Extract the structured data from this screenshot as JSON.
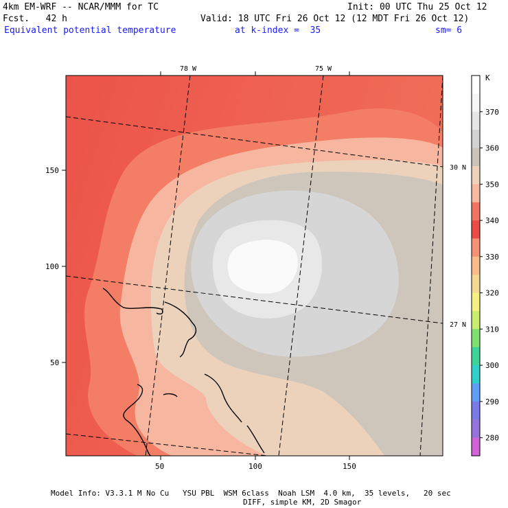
{
  "header": {
    "model_line": "4km EM-WRF -- NCAR/MMM for TC",
    "init_line": "Init: 00 UTC Thu 25 Oct 12",
    "fcst_line": "Fcst.   42 h",
    "valid_line": "Valid: 18 UTC Fri 26 Oct 12 (12 MDT Fri 26 Oct 12)",
    "field_name": "Equivalent potential temperature",
    "level_label": "at k-index =  35",
    "smooth_label": "sm= 6"
  },
  "map": {
    "x_ticks": [
      "50",
      "100",
      "150"
    ],
    "y_ticks": [
      "150",
      "100",
      "50"
    ],
    "lon_labels": [
      "78 W",
      "75 W"
    ],
    "lat_labels": [
      "30 N",
      "27 N"
    ]
  },
  "colorbar": {
    "unit": "K",
    "labels": [
      "370",
      "360",
      "350",
      "340",
      "330",
      "320",
      "310",
      "300",
      "290",
      "280"
    ],
    "colors": [
      "#ffffff",
      "#f6f6f6",
      "#e6e6e6",
      "#d2d2d2",
      "#ccc4ba",
      "#f0d2bc",
      "#f7b9a0",
      "#f37460",
      "#eb4b45",
      "#f59273",
      "#f8ba86",
      "#f4d790",
      "#f4f083",
      "#c9ed6e",
      "#7de06f",
      "#3dd49a",
      "#2fcfca",
      "#5e9ef3",
      "#7a7ae6",
      "#9474da",
      "#d262d8"
    ]
  },
  "footer": {
    "line1": "Model Info: V3.3.1 M No Cu   YSU PBL  WSM 6class  Noah LSM  4.0 km,  35 levels,   20 sec",
    "line2": "DIFF, simple KM, 2D Smagor"
  }
}
